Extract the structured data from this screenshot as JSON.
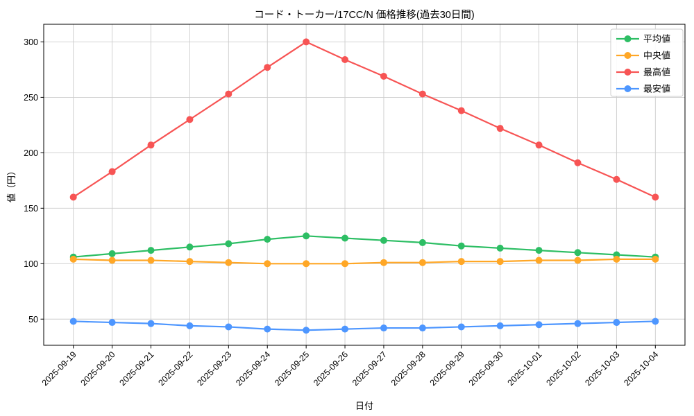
{
  "chart_data": {
    "type": "line",
    "title": "コード・トーカー/17CC/N 価格推移(過去30日間)",
    "xlabel": "日付",
    "ylabel": "値（円）",
    "x": [
      "2025-09-19",
      "2025-09-20",
      "2025-09-21",
      "2025-09-22",
      "2025-09-23",
      "2025-09-24",
      "2025-09-25",
      "2025-09-26",
      "2025-09-27",
      "2025-09-28",
      "2025-09-29",
      "2025-09-30",
      "2025-10-01",
      "2025-10-02",
      "2025-10-03",
      "2025-10-04"
    ],
    "series": [
      {
        "name": "平均値",
        "color": "#2dbe64",
        "marker": "circle",
        "values": [
          106,
          109,
          112,
          115,
          118,
          122,
          125,
          123,
          121,
          119,
          116,
          114,
          112,
          110,
          108,
          106
        ]
      },
      {
        "name": "中央値",
        "color": "#ffa726",
        "marker": "circle",
        "values": [
          104,
          103,
          103,
          102,
          101,
          100,
          100,
          100,
          101,
          101,
          102,
          102,
          103,
          103,
          104,
          104
        ]
      },
      {
        "name": "最高値",
        "color": "#f75454",
        "marker": "circle",
        "values": [
          160,
          183,
          207,
          230,
          253,
          277,
          300,
          284,
          269,
          253,
          238,
          222,
          207,
          191,
          176,
          160
        ]
      },
      {
        "name": "最安値",
        "color": "#4d96ff",
        "marker": "circle",
        "values": [
          48,
          47,
          46,
          44,
          43,
          41,
          40,
          41,
          42,
          42,
          43,
          44,
          45,
          46,
          47,
          48
        ]
      }
    ],
    "yticks": [
      50,
      100,
      150,
      200,
      250,
      300
    ],
    "ylim": [
      26.4,
      315.9
    ],
    "grid": true,
    "grid_color": "#cccccc",
    "spine_color": "#000000",
    "legend_position": "top-right",
    "x_tick_rotation": 45
  }
}
